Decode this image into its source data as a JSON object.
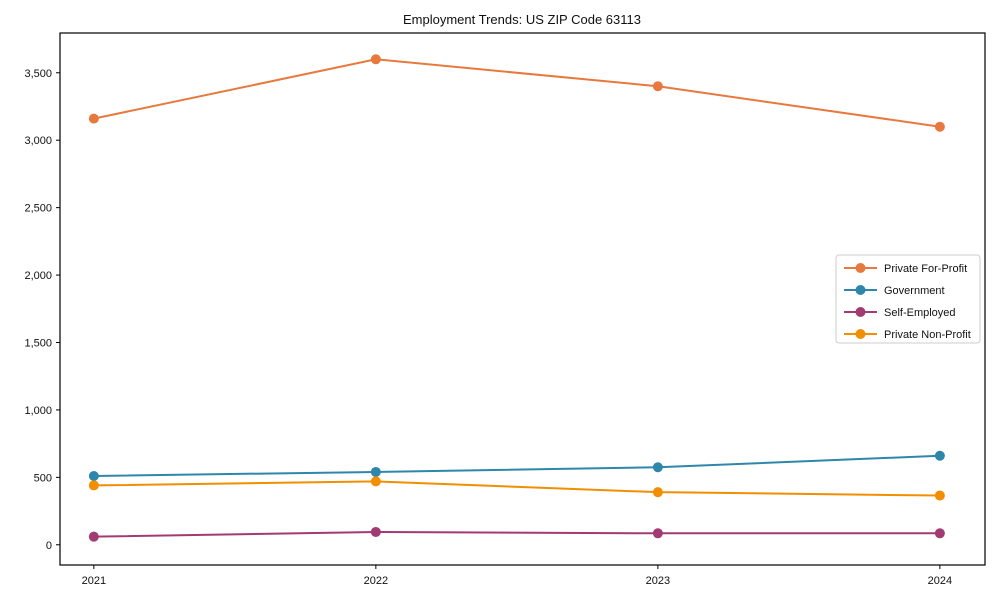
{
  "chart_data": {
    "type": "line",
    "title": "Employment Trends: US ZIP Code 63113",
    "xlabel": "",
    "ylabel": "",
    "x": [
      2021,
      2022,
      2023,
      2024
    ],
    "x_tick_labels": [
      "2021",
      "2022",
      "2023",
      "2024"
    ],
    "series": [
      {
        "name": "Private For-Profit",
        "color": "#E8793E",
        "values": [
          3160,
          3600,
          3400,
          3100
        ]
      },
      {
        "name": "Government",
        "color": "#2E86AB",
        "values": [
          510,
          540,
          575,
          660
        ]
      },
      {
        "name": "Self-Employed",
        "color": "#A23B72",
        "values": [
          60,
          95,
          85,
          85
        ]
      },
      {
        "name": "Private Non-Profit",
        "color": "#F18F01",
        "values": [
          440,
          470,
          390,
          365
        ]
      }
    ],
    "xlim": [
      2020.88,
      2024.16
    ],
    "ylim": [
      -150,
      3795
    ],
    "y_ticks": [
      0,
      500,
      1000,
      1500,
      2000,
      2500,
      3000,
      3500
    ],
    "y_tick_labels": [
      "0",
      "500",
      "1,000",
      "1,500",
      "2,000",
      "2,500",
      "3,000",
      "3,500"
    ],
    "grid": false,
    "legend_position": "center right",
    "marker": "circle",
    "axis_color": "#000000",
    "legend_border_color": "#cccccc",
    "background_color": "#ffffff"
  }
}
